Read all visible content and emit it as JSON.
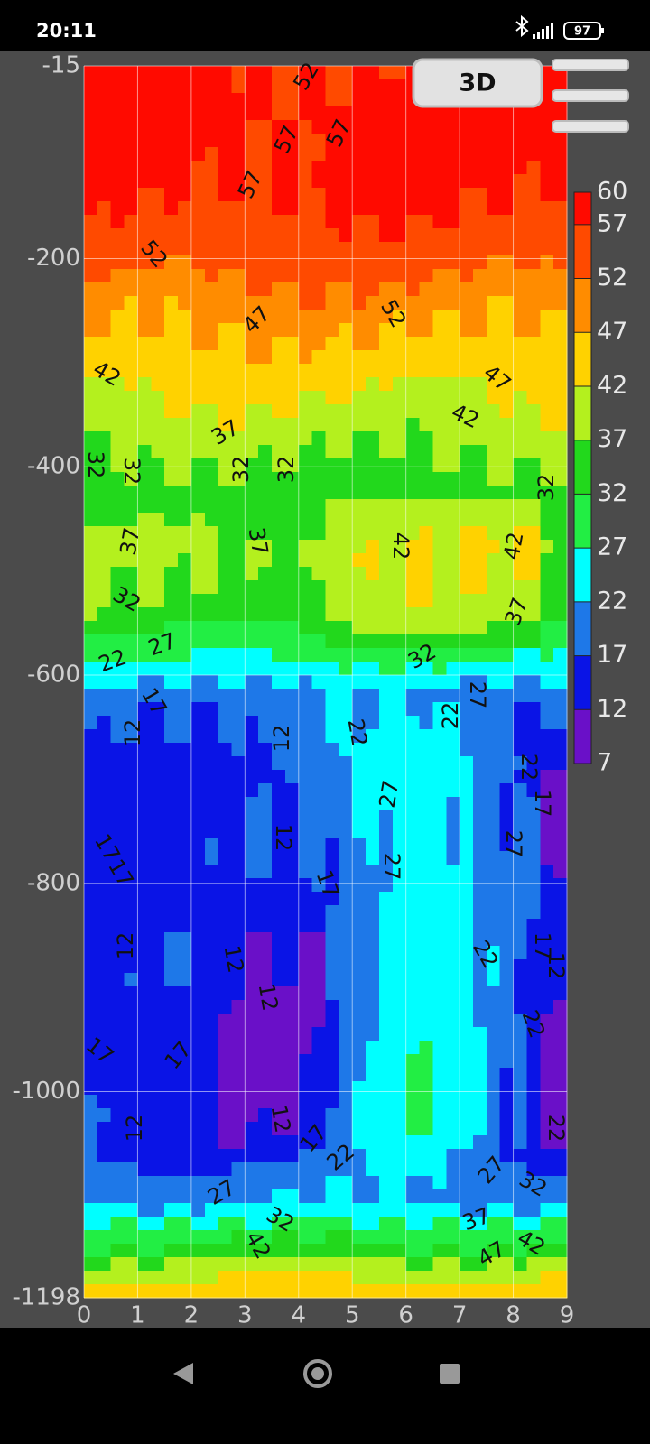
{
  "status_bar": {
    "time": "20:11",
    "battery": "97"
  },
  "button": "3D",
  "chart_data": {
    "type": "contour",
    "xlim": [
      0,
      9
    ],
    "xticks": [
      0,
      1,
      2,
      3,
      4,
      5,
      6,
      7,
      8,
      9
    ],
    "ylim": [
      -1198,
      -15
    ],
    "yticks": [
      -15,
      -200,
      -400,
      -600,
      -800,
      -1000,
      -1198
    ],
    "levels": [
      7,
      12,
      17,
      22,
      27,
      32,
      37,
      42,
      47,
      52,
      57,
      60
    ],
    "colors": [
      "#6a10c8",
      "#0a14e6",
      "#1e78e8",
      "#00ffff",
      "#22ee44",
      "#22d81c",
      "#b4f01e",
      "#ffd200",
      "#ff8c00",
      "#ff4a00",
      "#ff0a00"
    ],
    "contour_labels": [
      52,
      57,
      57,
      57,
      52,
      47,
      52,
      42,
      47,
      42,
      37,
      32,
      32,
      32,
      32,
      32,
      37,
      37,
      42,
      42,
      32,
      37,
      27,
      22,
      32,
      27,
      22,
      17,
      12,
      12,
      22,
      22,
      17,
      27,
      27,
      12,
      17,
      17,
      17,
      27,
      12,
      12,
      12,
      22,
      17,
      12,
      22,
      17,
      17,
      12,
      12,
      17,
      22,
      22,
      27,
      32,
      27,
      32,
      37,
      42,
      47,
      42
    ],
    "grid": true
  }
}
